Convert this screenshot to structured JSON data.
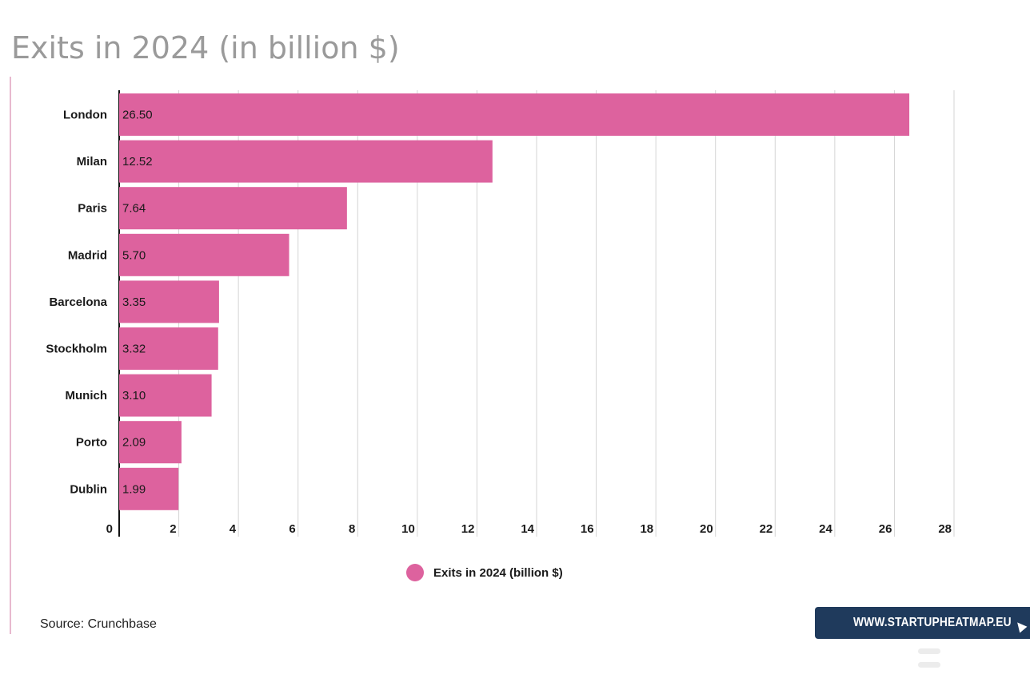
{
  "chart_data": {
    "type": "bar",
    "orientation": "horizontal",
    "title": "Exits in 2024 (in billion $)",
    "categories": [
      "London",
      "Milan",
      "Paris",
      "Madrid",
      "Barcelona",
      "Stockholm",
      "Munich",
      "Porto",
      "Dublin"
    ],
    "values": [
      26.5,
      12.52,
      7.64,
      5.7,
      3.35,
      3.32,
      3.1,
      2.09,
      1.99
    ],
    "value_labels": [
      "26.50",
      "12.52",
      "7.64",
      "5.70",
      "3.35",
      "3.32",
      "3.10",
      "2.09",
      "1.99"
    ],
    "series": [
      {
        "name": "Exits in 2024 (billion $)",
        "color": "#dd629e"
      }
    ],
    "xlim": [
      0,
      28
    ],
    "xticks": [
      0,
      2,
      4,
      6,
      8,
      10,
      12,
      14,
      16,
      18,
      20,
      22,
      24,
      26,
      28
    ],
    "grid": true,
    "legend_position": "bottom"
  },
  "legend": {
    "label": "Exits in 2024 (billion $)"
  },
  "source": "Source: Crunchbase",
  "branding": {
    "badge_text": "WWW.STARTUPHEATMAP.EU",
    "badge_color": "#1f3a5c",
    "cursor_icon": "cursor-arrow-icon"
  }
}
